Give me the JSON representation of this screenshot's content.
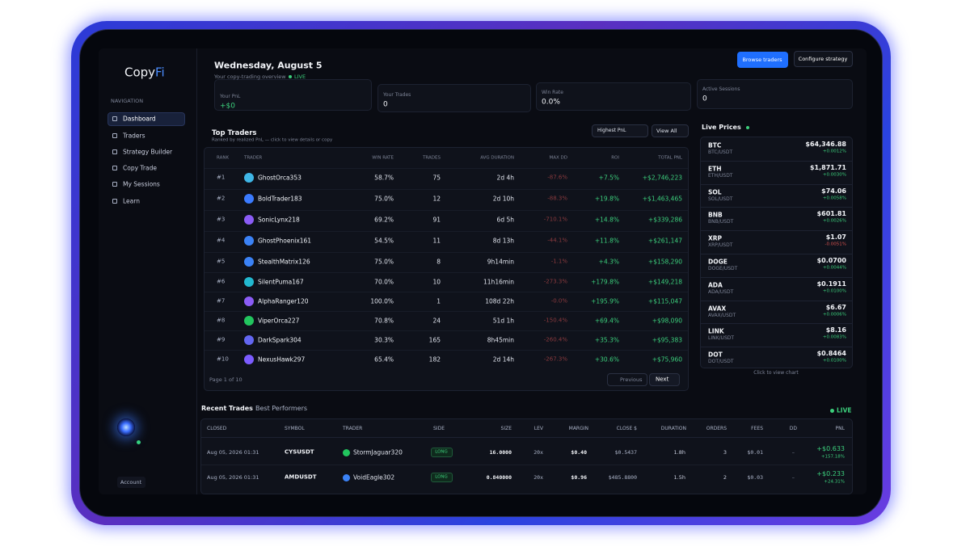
{
  "sidebar": {
    "brand": "Copy",
    "brand_accent": "Fi",
    "nav_heading": "NAVIGATION",
    "nav": [
      "Dashboard",
      "Traders",
      "Strategy Builder",
      "Copy Trade",
      "My Sessions",
      "Learn"
    ],
    "account": "Account"
  },
  "header": {
    "date": "Wednesday, August 5",
    "subtitle": "Your copy-trading overview",
    "live": "LIVE",
    "buttons": [
      "Browse traders",
      "Configure strategy"
    ]
  },
  "stats": [
    {
      "label": "Your PnL",
      "value": "+$0"
    },
    {
      "label": "Your Trades",
      "value": "0"
    },
    {
      "label": "Win Rate",
      "value": "0.0%"
    },
    {
      "label": "Active Sessions",
      "value": "0"
    }
  ],
  "top_traders": {
    "title": "Top Traders",
    "subtitle": "Ranked by realized PnL — click to view details or copy",
    "sort": "Highest PnL",
    "view_all": "View All",
    "columns": [
      "RANK",
      "TRADER",
      "WIN RATE",
      "TRADES",
      "AVG DURATION",
      "MAX DD",
      "ROI",
      "TOTAL PNL"
    ],
    "rows": [
      [
        "#1",
        "GhostOrca353",
        "58.7%",
        "75",
        "2d 4h",
        "-87.6%",
        "+7.5%",
        "+$2,746,223"
      ],
      [
        "#2",
        "BoldTrader183",
        "75.0%",
        "12",
        "2d 10h",
        "-88.3%",
        "+19.8%",
        "+$1,463,465"
      ],
      [
        "#3",
        "SonicLynx218",
        "69.2%",
        "91",
        "6d 5h",
        "-710.1%",
        "+14.8%",
        "+$339,286"
      ],
      [
        "#4",
        "GhostPhoenix161",
        "54.5%",
        "11",
        "8d 13h",
        "-44.1%",
        "+11.8%",
        "+$261,147"
      ],
      [
        "#5",
        "StealthMatrix126",
        "75.0%",
        "8",
        "9h14min",
        "-1.1%",
        "+4.3%",
        "+$158,290"
      ],
      [
        "#6",
        "SilentPuma167",
        "70.0%",
        "10",
        "11h16min",
        "-273.3%",
        "+179.8%",
        "+$149,218"
      ],
      [
        "#7",
        "AlphaRanger120",
        "100.0%",
        "1",
        "108d 22h",
        "-0.0%",
        "+195.9%",
        "+$115,047"
      ],
      [
        "#8",
        "ViperOrca227",
        "70.8%",
        "24",
        "51d 1h",
        "-150.4%",
        "+69.4%",
        "+$98,090"
      ],
      [
        "#9",
        "DarkSpark304",
        "30.3%",
        "165",
        "8h45min",
        "-260.4%",
        "+35.3%",
        "+$95,383"
      ],
      [
        "#10",
        "NexusHawk297",
        "65.4%",
        "182",
        "2d 14h",
        "-267.3%",
        "+30.6%",
        "+$75,960"
      ]
    ],
    "page": "Page 1 of 10",
    "previous": "Previous",
    "next": "Next"
  },
  "live_prices": {
    "title": "Live Prices",
    "items": [
      {
        "symbol": "BTC",
        "pair": "BTC/USDT",
        "price": "$64,346.88",
        "change": "+0.0012%"
      },
      {
        "symbol": "ETH",
        "pair": "ETH/USDT",
        "price": "$1,871.71",
        "change": "+0.0030%"
      },
      {
        "symbol": "SOL",
        "pair": "SOL/USDT",
        "price": "$74.06",
        "change": "+0.0058%"
      },
      {
        "symbol": "BNB",
        "pair": "BNB/USDT",
        "price": "$601.81",
        "change": "+0.0026%"
      },
      {
        "symbol": "XRP",
        "pair": "XRP/USDT",
        "price": "$1.07",
        "change": "-0.0051%"
      },
      {
        "symbol": "DOGE",
        "pair": "DOGE/USDT",
        "price": "$0.0700",
        "change": "+0.0044%"
      },
      {
        "symbol": "ADA",
        "pair": "ADA/USDT",
        "price": "$0.1911",
        "change": "+0.0100%"
      },
      {
        "symbol": "AVAX",
        "pair": "AVAX/USDT",
        "price": "$6.67",
        "change": "+0.0006%"
      },
      {
        "symbol": "LINK",
        "pair": "LINK/USDT",
        "price": "$8.16",
        "change": "+0.0083%"
      },
      {
        "symbol": "DOT",
        "pair": "DOT/USDT",
        "price": "$0.8464",
        "change": "+0.0100%"
      }
    ],
    "hint": "Click to view chart"
  },
  "recent_trades": {
    "tabs": [
      "Recent Trades",
      "Best Performers"
    ],
    "live": "LIVE",
    "columns": [
      "CLOSED",
      "SYMBOL",
      "TRADER",
      "SIDE",
      "SIZE",
      "LEV",
      "MARGIN",
      "CLOSE $",
      "DURATION",
      "ORDERS",
      "FEES",
      "DD",
      "PNL"
    ],
    "rows": [
      [
        "Aug 05, 2026 01:31",
        "CYSUSDT",
        "StormJaguar320",
        "LONG",
        "16.0000",
        "20x",
        "$0.40",
        "$0.5437",
        "1.8h",
        "3",
        "$0.01",
        "–",
        "+$0.633",
        "+157.18%"
      ],
      [
        "Aug 05, 2026 01:31",
        "AMDUSDT",
        "VoidEagle302",
        "LONG",
        "0.840000",
        "20x",
        "$0.96",
        "$485.8800",
        "1.5h",
        "2",
        "$0.03",
        "–",
        "+$0.233",
        "+24.31%"
      ]
    ]
  }
}
